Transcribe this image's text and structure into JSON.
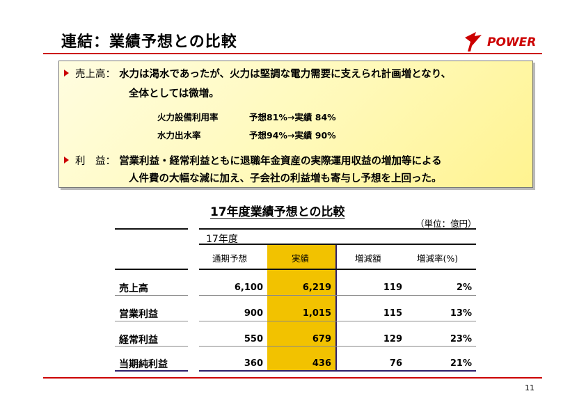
{
  "header": {
    "title": "連結：業績予想との比較",
    "logo_text": "POWER",
    "accent_color": "#cc0000"
  },
  "summary": {
    "sales": {
      "label": "売上高：",
      "line1": "水力は渇水であったが、火力は堅調な電力需要に支えられ計画増となり、",
      "line2": "全体としては微増。",
      "metrics": [
        {
          "name": "火力設備利用率",
          "value": "予想81%→実績 84%"
        },
        {
          "name": "水力出水率",
          "value": "予想94%→実績 90%"
        }
      ]
    },
    "profit": {
      "label": "利　益：",
      "line1": "営業利益・経常利益ともに退職年金資産の実際運用収益の増加等による",
      "line2": "人件費の大幅な減に加え、子会社の利益増も寄与し予想を上回った。"
    }
  },
  "table": {
    "title": "17年度業績予想との比較",
    "unit": "（単位：億円）",
    "year_header": "17年度",
    "columns": [
      "通期予想",
      "実績",
      "増減額",
      "増減率(%)"
    ],
    "rows": [
      {
        "label": "売上高",
        "forecast": "6,100",
        "actual": "6,219",
        "diff": "119",
        "rate": "2%"
      },
      {
        "label": "営業利益",
        "forecast": "900",
        "actual": "1,015",
        "diff": "115",
        "rate": "13%"
      },
      {
        "label": "経常利益",
        "forecast": "550",
        "actual": "679",
        "diff": "129",
        "rate": "23%"
      },
      {
        "label": "当期純利益",
        "forecast": "360",
        "actual": "436",
        "diff": "76",
        "rate": "21%"
      }
    ],
    "highlight_color": "#f2c200"
  },
  "footer": {
    "page_number": "11"
  }
}
